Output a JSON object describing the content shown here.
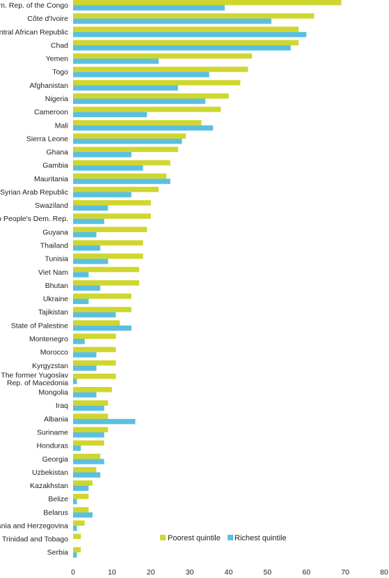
{
  "chart_data": {
    "type": "bar",
    "orientation": "horizontal",
    "categories": [
      "Dem. Rep. of the Congo",
      "Côte d'Ivoire",
      "Central African Republic",
      "Chad",
      "Yemen",
      "Togo",
      "Afghanistan",
      "Nigeria",
      "Cameroon",
      "Mali",
      "Sierra Leone",
      "Ghana",
      "Gambia",
      "Mauritania",
      "Syrian Arab Republic",
      "Swaziland",
      "Lao People's Dem. Rep.",
      "Guyana",
      "Thailand",
      "Tunisia",
      "Viet Nam",
      "Bhutan",
      "Ukraine",
      "Tajikistan",
      "State of Palestine",
      "Montenegro",
      "Morocco",
      "Kyrgyzstan",
      "The former Yugoslav|Rep. of Macedonia",
      "Mongolia",
      "Iraq",
      "Albania",
      "Suriname",
      "Honduras",
      "Georgia",
      "Uzbekistan",
      "Kazakhstan",
      "Belize",
      "Belarus",
      "Bosnia and Herzegovina",
      "Trinidad and Tobago",
      "Serbia"
    ],
    "series": [
      {
        "name": "Poorest quintile",
        "color": "#cfd62e",
        "values": [
          69,
          62,
          58,
          58,
          46,
          45,
          43,
          40,
          38,
          33,
          29,
          27,
          25,
          24,
          22,
          20,
          20,
          19,
          18,
          18,
          17,
          17,
          15,
          15,
          12,
          11,
          11,
          11,
          11,
          10,
          9,
          9,
          9,
          8,
          7,
          6,
          5,
          4,
          4,
          3,
          2,
          2
        ]
      },
      {
        "name": "Richest quintile",
        "color": "#5bbfdf",
        "values": [
          39,
          51,
          60,
          56,
          22,
          35,
          27,
          34,
          19,
          36,
          28,
          15,
          18,
          25,
          15,
          9,
          8,
          6,
          7,
          9,
          4,
          7,
          4,
          11,
          15,
          3,
          6,
          6,
          1,
          6,
          8,
          16,
          8,
          2,
          8,
          7,
          4,
          1,
          5,
          1,
          0,
          1
        ]
      }
    ],
    "xlim": [
      0,
      80
    ],
    "xticks": [
      0,
      10,
      20,
      30,
      40,
      50,
      60,
      70,
      80
    ],
    "legend_position": "bottom-right",
    "grid": false
  }
}
